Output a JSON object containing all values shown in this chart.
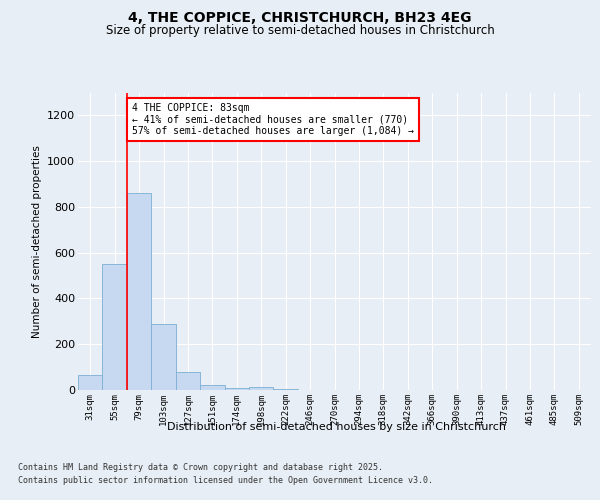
{
  "title1": "4, THE COPPICE, CHRISTCHURCH, BH23 4EG",
  "title2": "Size of property relative to semi-detached houses in Christchurch",
  "xlabel": "Distribution of semi-detached houses by size in Christchurch",
  "ylabel": "Number of semi-detached properties",
  "categories": [
    "31sqm",
    "55sqm",
    "79sqm",
    "103sqm",
    "127sqm",
    "151sqm",
    "174sqm",
    "198sqm",
    "222sqm",
    "246sqm",
    "270sqm",
    "294sqm",
    "318sqm",
    "342sqm",
    "366sqm",
    "390sqm",
    "413sqm",
    "437sqm",
    "461sqm",
    "485sqm",
    "509sqm"
  ],
  "values": [
    65,
    550,
    860,
    290,
    80,
    20,
    10,
    15,
    5,
    0,
    0,
    0,
    0,
    0,
    0,
    0,
    0,
    0,
    0,
    0,
    0
  ],
  "bar_color": "#c6d9f0",
  "bar_edge_color": "#7bafd4",
  "property_line_x": 1.5,
  "annotation_title": "4 THE COPPICE: 83sqm",
  "annotation_line1": "← 41% of semi-detached houses are smaller (770)",
  "annotation_line2": "57% of semi-detached houses are larger (1,084) →",
  "ylim": [
    0,
    1300
  ],
  "yticks": [
    0,
    200,
    400,
    600,
    800,
    1000,
    1200
  ],
  "footer_line1": "Contains HM Land Registry data © Crown copyright and database right 2025.",
  "footer_line2": "Contains public sector information licensed under the Open Government Licence v3.0.",
  "bg_color": "#e8eef5",
  "plot_bg_color": "#e8eef5"
}
